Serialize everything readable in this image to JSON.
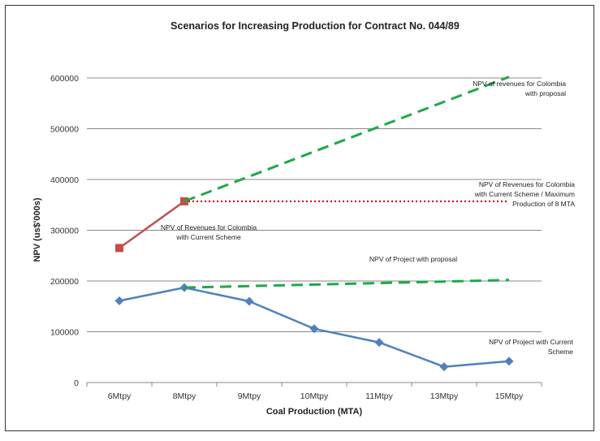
{
  "chart_data": {
    "type": "line",
    "title": "Scenarios for Increasing Production for Contract No. 044/89",
    "xlabel": "Coal Production (MTA)",
    "ylabel": "NPV (us$'000s)",
    "ylim": [
      0,
      600000
    ],
    "yticks": [
      "0",
      "100000",
      "200000",
      "300000",
      "400000",
      "500000",
      "600000"
    ],
    "categories": [
      "6Mtpy",
      "8Mtpy",
      "9Mtpy",
      "10Mtpy",
      "11Mtpy",
      "13Mtpy",
      "15Mtpy"
    ],
    "grid": "horizontal",
    "series": [
      {
        "key": "project_current",
        "color": "#4f81bd",
        "style": "solid",
        "marker": "diamond",
        "points": [
          [
            0,
            161000
          ],
          [
            1,
            187000
          ],
          [
            2,
            160000
          ],
          [
            3,
            106000
          ],
          [
            4,
            79000
          ],
          [
            5,
            31000
          ],
          [
            6,
            42000
          ]
        ]
      },
      {
        "key": "project_proposal",
        "color": "#1fa84a",
        "style": "dashed",
        "marker": "none",
        "points": [
          [
            1,
            187000
          ],
          [
            6,
            202000
          ]
        ]
      },
      {
        "key": "revenues_current",
        "color": "#c0504d",
        "style": "solid",
        "marker": "square",
        "points": [
          [
            0,
            265000
          ],
          [
            1,
            357000
          ]
        ]
      },
      {
        "key": "revenues_max8",
        "color": "#c00000",
        "style": "dotted",
        "marker": "none",
        "points": [
          [
            1,
            357000
          ],
          [
            6,
            357000
          ]
        ]
      },
      {
        "key": "revenues_proposal",
        "color": "#1fa84a",
        "style": "dashed",
        "marker": "none",
        "points": [
          [
            1,
            357000
          ],
          [
            6,
            602000
          ]
        ]
      }
    ],
    "annotations": [
      {
        "key": "ann_revenues_proposal",
        "lines": [
          "NPV of revenues for Colombia",
          "with proposal"
        ]
      },
      {
        "key": "ann_revenues_max",
        "lines": [
          "NPV of Revenues for Colombia",
          "with Current Scheme / Maximum",
          "Production of 8 MTA"
        ]
      },
      {
        "key": "ann_revenues_current",
        "lines": [
          "NPV of Revenues for Colombia",
          "with Current Scheme"
        ]
      },
      {
        "key": "ann_project_proposal",
        "lines": [
          "NPV of Project with proposal"
        ]
      },
      {
        "key": "ann_project_current",
        "lines": [
          "NPV of Project with Current",
          "Scheme"
        ]
      }
    ]
  }
}
